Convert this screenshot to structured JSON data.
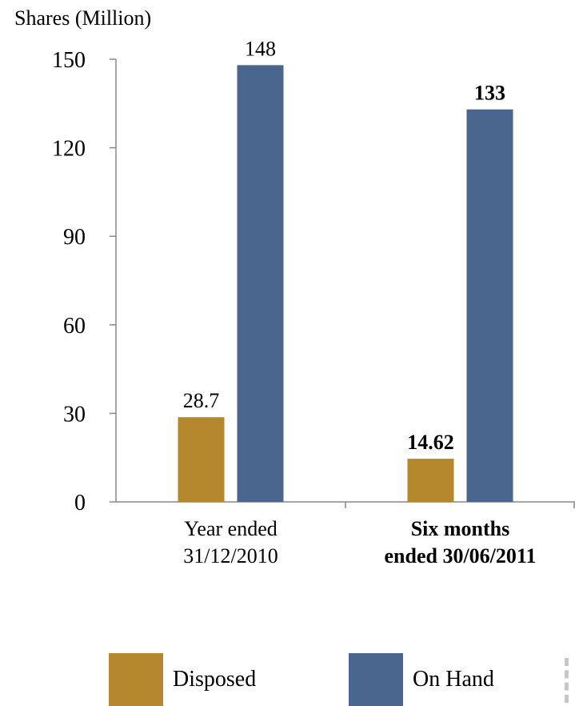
{
  "chart_data": {
    "type": "bar",
    "ylabel": "Shares (Million)",
    "ylim": [
      0,
      150
    ],
    "yticks": [
      0,
      30,
      60,
      90,
      120,
      150
    ],
    "categories": [
      {
        "lines": [
          "Year ended",
          "31/12/2010"
        ],
        "bold": false
      },
      {
        "lines": [
          "Six months",
          "ended 30/06/2011"
        ],
        "bold": true
      }
    ],
    "series": [
      {
        "name": "Disposed",
        "color": "#b5882e",
        "values": [
          28.7,
          14.62
        ],
        "labels": [
          "28.7",
          "14.62"
        ]
      },
      {
        "name": "On Hand",
        "color": "#4a668e",
        "values": [
          148,
          133
        ],
        "labels": [
          "148",
          "133"
        ]
      }
    ],
    "legend": "bottom",
    "grid": false
  }
}
